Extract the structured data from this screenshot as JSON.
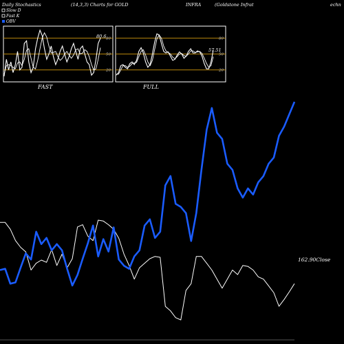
{
  "header": {
    "left": "Daily Stochastics",
    "params": "(14,3,3) Charts for GOLD",
    "symbol": "INFRA",
    "company": "(Goldstone  Infrat",
    "right": "echn"
  },
  "legend": [
    {
      "label": "Slow  D",
      "color": "#ffffff"
    },
    {
      "label": "Fast K",
      "color": "#ffffff"
    },
    {
      "label": "OBV",
      "color": "#1a5cff"
    }
  ],
  "colors": {
    "obv": "#1a5cff",
    "close": "#ffffff",
    "refline": "#b8860b",
    "background": "#000000"
  },
  "chart_data": [
    {
      "type": "line",
      "title": "FAST",
      "ylim": [
        0,
        100
      ],
      "ticks": [
        20,
        50,
        80
      ],
      "reference_lines": [
        20,
        50,
        80
      ],
      "last_value_label": "80.6",
      "series": [
        {
          "values": [
            8,
            40,
            20,
            35,
            15,
            30,
            55,
            20,
            25,
            70,
            75,
            35,
            15,
            25,
            60,
            80,
            95,
            85,
            60,
            40,
            50,
            65,
            45,
            30,
            40,
            55,
            65,
            50,
            35,
            45,
            60,
            70,
            55,
            40,
            60,
            65,
            50,
            35,
            30,
            10,
            15,
            40,
            70,
            80
          ]
        },
        {
          "values": [
            12,
            28,
            30,
            28,
            25,
            22,
            33,
            35,
            28,
            40,
            57,
            60,
            42,
            25,
            22,
            38,
            60,
            80,
            90,
            82,
            65,
            52,
            53,
            55,
            45,
            38,
            42,
            50,
            55,
            48,
            42,
            48,
            58,
            60,
            50,
            52,
            58,
            55,
            45,
            30,
            20,
            22,
            40,
            62
          ]
        }
      ]
    },
    {
      "type": "line",
      "title": "FULL",
      "ylim": [
        0,
        100
      ],
      "ticks": [
        20,
        50,
        80
      ],
      "reference_lines": [
        20,
        50,
        80
      ],
      "last_value_label": "57.51",
      "series": [
        {
          "values": [
            10,
            15,
            28,
            30,
            25,
            22,
            32,
            35,
            30,
            38,
            55,
            62,
            52,
            35,
            25,
            30,
            50,
            72,
            88,
            86,
            70,
            55,
            52,
            54,
            46,
            38,
            40,
            48,
            54,
            50,
            42,
            46,
            55,
            60,
            52,
            52,
            56,
            54,
            46,
            32,
            22,
            22,
            35,
            57
          ]
        },
        {
          "values": [
            12,
            12,
            20,
            28,
            28,
            25,
            27,
            32,
            33,
            34,
            45,
            55,
            58,
            48,
            35,
            28,
            38,
            58,
            78,
            86,
            80,
            65,
            56,
            53,
            50,
            44,
            41,
            45,
            50,
            51,
            47,
            46,
            50,
            56,
            56,
            53,
            54,
            55,
            51,
            42,
            32,
            25,
            28,
            45
          ]
        }
      ]
    },
    {
      "type": "line",
      "title": "",
      "last_value_label": "162.90Close",
      "series": [
        {
          "values": [
            305,
            305,
            290,
            265,
            250,
            240,
            200,
            215,
            222,
            217,
            245,
            210,
            235,
            205,
            225,
            295,
            300,
            275,
            265,
            310,
            308,
            300,
            290,
            270,
            235,
            210,
            180,
            205,
            215,
            225,
            230,
            228,
            120,
            110,
            95,
            90,
            155,
            170,
            230,
            230,
            215,
            200,
            180,
            160,
            180,
            200,
            190,
            210,
            208,
            200,
            185,
            180,
            165,
            150,
            120,
            135,
            152,
            170
          ]
        },
        {
          "values": [
            108,
            110,
            86,
            88,
            112,
            135,
            125,
            170,
            150,
            160,
            140,
            150,
            140,
            110,
            83,
            100,
            126,
            151,
            180,
            130,
            158,
            138,
            177,
            125,
            115,
            110,
            130,
            140,
            180,
            190,
            160,
            170,
            245,
            260,
            215,
            210,
            200,
            155,
            200,
            270,
            335,
            370,
            330,
            320,
            280,
            270,
            240,
            225,
            240,
            230,
            250,
            260,
            280,
            290,
            325,
            340,
            360,
            380
          ]
        }
      ]
    }
  ]
}
